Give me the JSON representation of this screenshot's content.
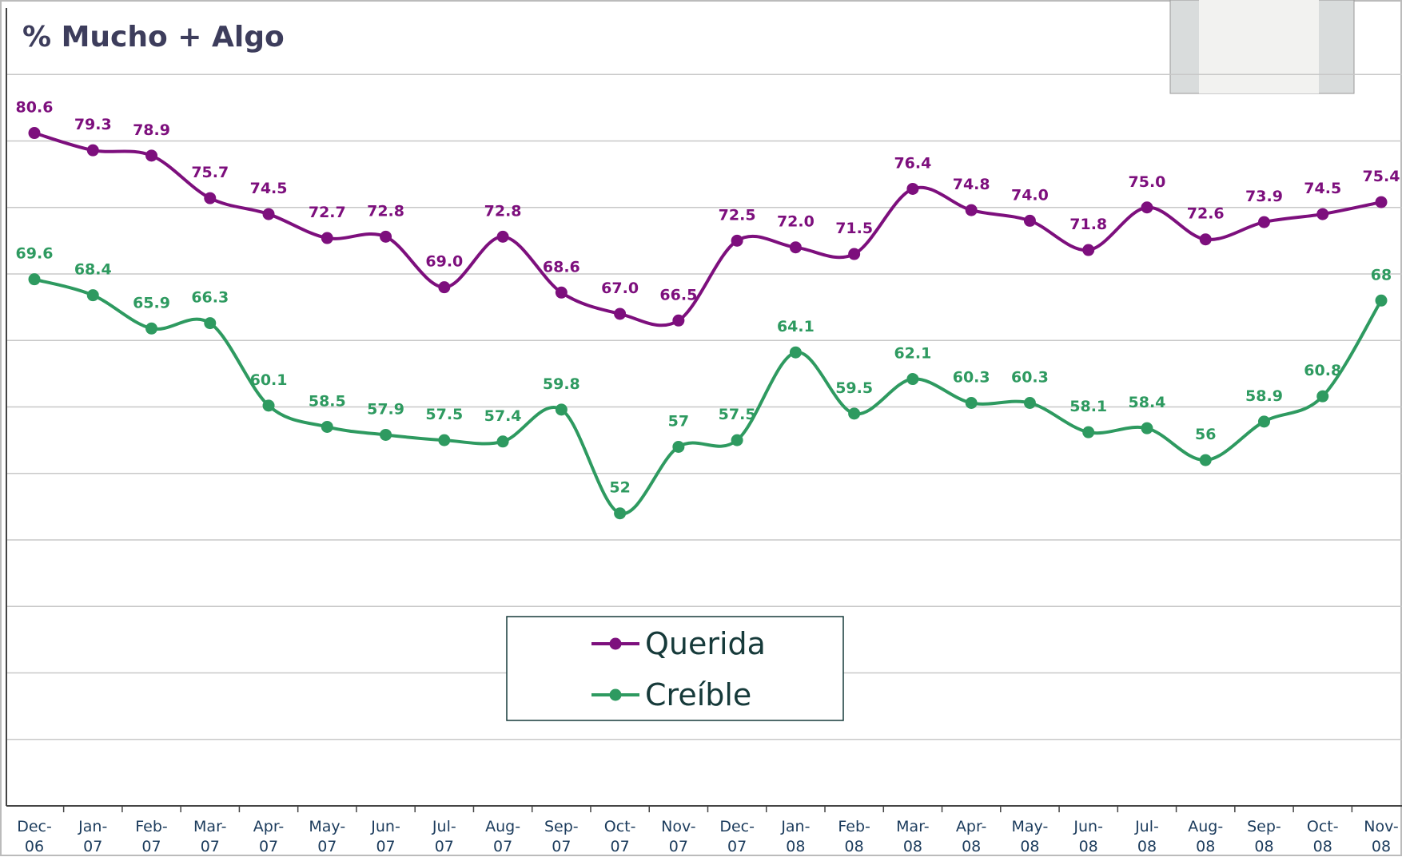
{
  "chart_data": {
    "type": "line",
    "title": "% Mucho + Algo",
    "categories": [
      "Dec-06",
      "Jan-07",
      "Feb-07",
      "Mar-07",
      "Apr-07",
      "May-07",
      "Jun-07",
      "Jul-07",
      "Aug-07",
      "Sep-07",
      "Oct-07",
      "Nov-07",
      "Dec-07",
      "Jan-08",
      "Feb-08",
      "Mar-08",
      "Apr-08",
      "May-08",
      "Jun-08",
      "Jul-08",
      "Aug-08",
      "Sep-08",
      "Oct-08",
      "Nov-08"
    ],
    "series": [
      {
        "name": "Querida",
        "color": "#7d0f7d",
        "values": [
          80.6,
          79.3,
          78.9,
          75.7,
          74.5,
          72.7,
          72.8,
          69.0,
          72.8,
          68.6,
          67.0,
          66.5,
          72.5,
          72.0,
          71.5,
          76.4,
          74.8,
          74.0,
          71.8,
          75.0,
          72.6,
          73.9,
          74.5,
          75.4
        ],
        "value_labels": [
          "80.6",
          "79.3",
          "78.9",
          "75.7",
          "74.5",
          "72.7",
          "72.8",
          "69.0",
          "72.8",
          "68.6",
          "67.0",
          "66.5",
          "72.5",
          "72.0",
          "71.5",
          "76.4",
          "74.8",
          "74.0",
          "71.8",
          "75.0",
          "72.6",
          "73.9",
          "74.5",
          "75.4"
        ]
      },
      {
        "name": "Creíble",
        "color": "#2e9a60",
        "values": [
          69.6,
          68.4,
          65.9,
          66.3,
          60.1,
          58.5,
          57.9,
          57.5,
          57.4,
          59.8,
          52,
          57,
          57.5,
          64.1,
          59.5,
          62.1,
          60.3,
          60.3,
          58.1,
          58.4,
          56,
          58.9,
          60.8,
          68
        ]
      }
    ],
    "ylim": [
      30,
      90
    ],
    "yticks": [
      30,
      35,
      40,
      45,
      50,
      55,
      60,
      65,
      70,
      75,
      80,
      85
    ],
    "grid": true
  }
}
